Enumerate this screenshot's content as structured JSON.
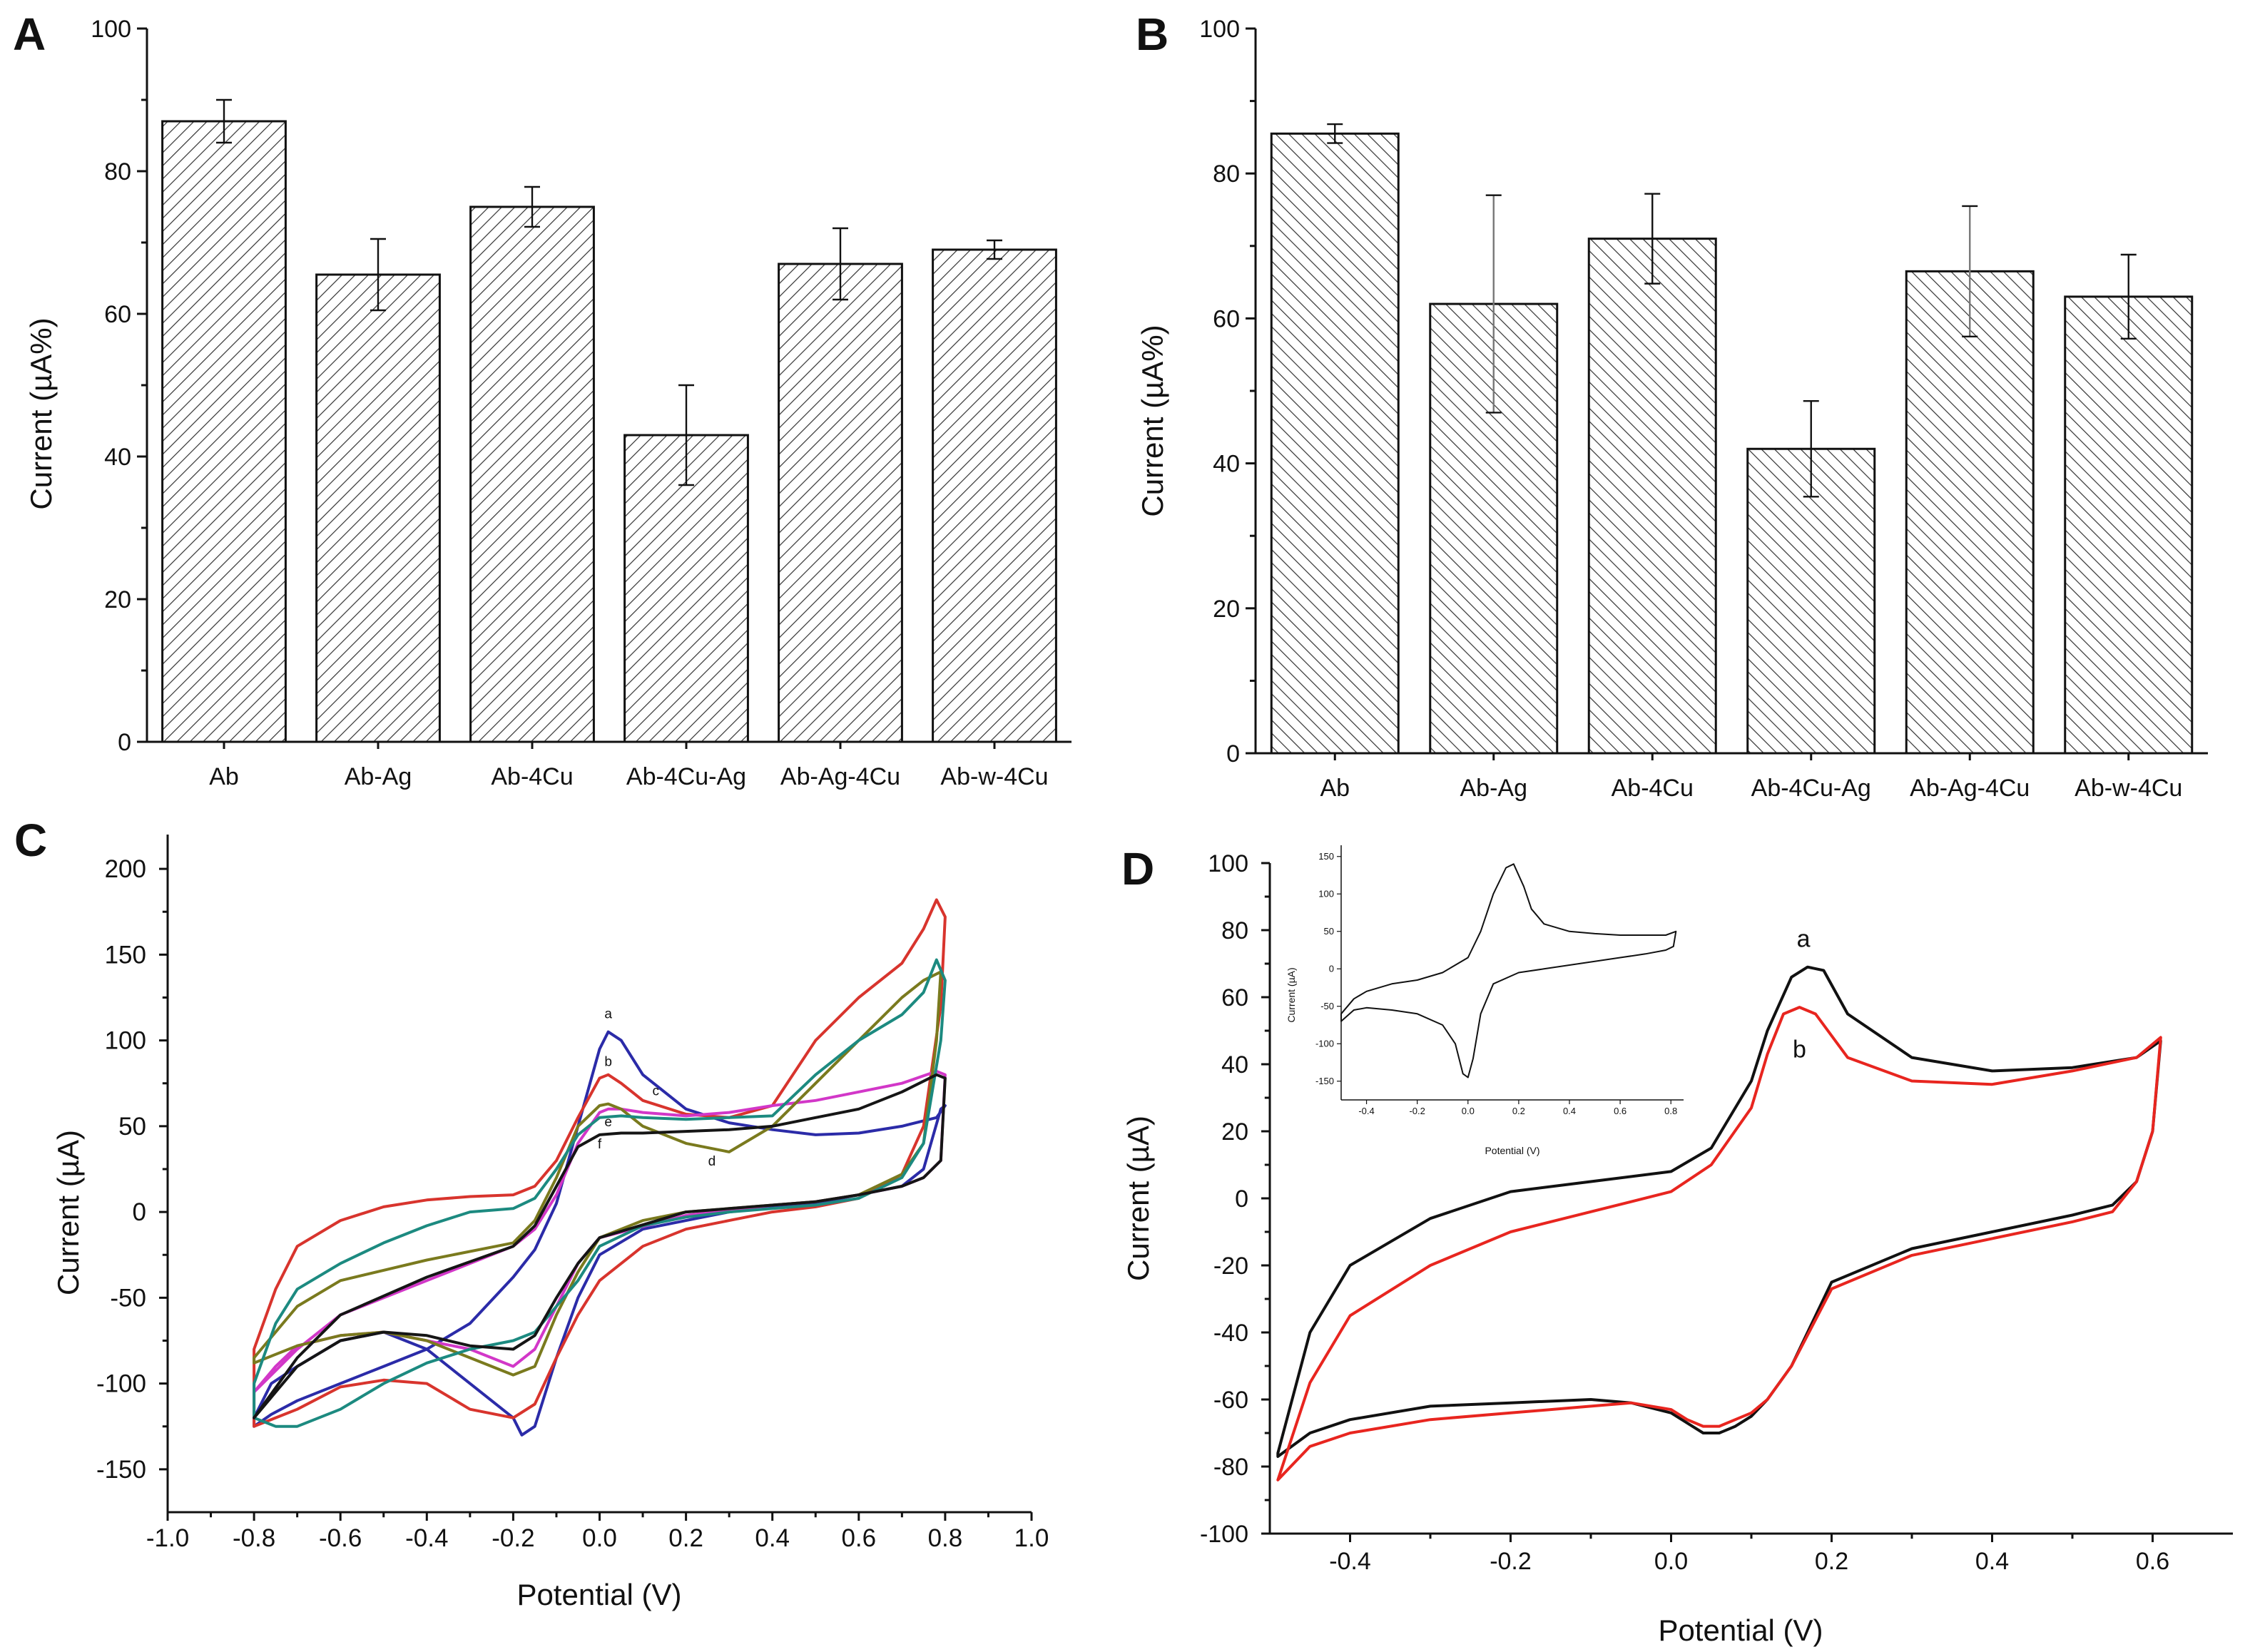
{
  "chart_data": [
    {
      "panel": "A",
      "type": "bar",
      "ylabel": "Current (µA%)",
      "ylim": [
        0,
        100
      ],
      "yticks": [
        "0",
        "20",
        "40",
        "60",
        "80",
        "100"
      ],
      "categories": [
        "Ab",
        "Ab-Ag",
        "Ab-4Cu",
        "Ab-4Cu-Ag",
        "Ab-Ag-4Cu",
        "Ab-w-4Cu"
      ],
      "values": [
        87,
        65.5,
        75,
        43,
        67,
        69
      ],
      "errors": [
        3,
        5,
        2.8,
        7,
        5,
        1.3
      ],
      "pattern": "diagonal hatch"
    },
    {
      "panel": "B",
      "type": "bar",
      "ylabel": "Current (µA%)",
      "ylim": [
        0,
        100
      ],
      "yticks": [
        "0",
        "20",
        "40",
        "60",
        "80",
        "100"
      ],
      "categories": [
        "Ab",
        "Ab-Ag",
        "Ab-4Cu",
        "Ab-4Cu-Ag",
        "Ab-Ag-4Cu",
        "Ab-w-4Cu"
      ],
      "values": [
        85.5,
        62,
        71,
        42,
        66.5,
        63
      ],
      "errors": [
        1.3,
        15,
        6.2,
        6.6,
        9,
        5.8
      ],
      "pattern": "back-diagonal hatch"
    },
    {
      "panel": "C",
      "type": "line",
      "xlabel": "Potential  (V)",
      "ylabel": "Current (µA)",
      "xlim": [
        -1.0,
        1.0
      ],
      "ylim": [
        -175,
        220
      ],
      "xticks": [
        "-1.0",
        "-0.8",
        "-0.6",
        "-0.4",
        "-0.2",
        "0.0",
        "0.2",
        "0.4",
        "0.6",
        "0.8",
        "1.0"
      ],
      "yticks": [
        "-150",
        "-100",
        "-50",
        "0",
        "50",
        "100",
        "150",
        "200"
      ],
      "series": [
        {
          "name": "a",
          "color": "#2b2ba8",
          "label_pos": [
            0.02,
            113
          ],
          "x": [
            -0.8,
            -0.76,
            -0.7,
            -0.6,
            -0.5,
            -0.4,
            -0.3,
            -0.2,
            -0.15,
            -0.1,
            -0.05,
            0,
            0.02,
            0.05,
            0.1,
            0.2,
            0.3,
            0.4,
            0.5,
            0.6,
            0.7,
            0.78,
            0.8,
            0.79,
            0.75,
            0.7,
            0.6,
            0.5,
            0.4,
            0.3,
            0.2,
            0.1,
            0,
            -0.05,
            -0.1,
            -0.15,
            -0.18,
            -0.2,
            -0.3,
            -0.4,
            -0.5,
            -0.6,
            -0.7,
            -0.76,
            -0.8
          ],
          "y": [
            -125,
            -118,
            -110,
            -100,
            -90,
            -80,
            -65,
            -38,
            -22,
            5,
            50,
            95,
            105,
            100,
            80,
            60,
            52,
            48,
            45,
            46,
            50,
            55,
            62,
            60,
            25,
            15,
            10,
            5,
            3,
            0,
            -5,
            -10,
            -25,
            -50,
            -85,
            -125,
            -130,
            -120,
            -100,
            -80,
            -70,
            -75,
            -90,
            -100,
            -120
          ]
        },
        {
          "name": "b",
          "color": "#d8342d",
          "label_pos": [
            0.02,
            85
          ],
          "x": [
            -0.8,
            -0.75,
            -0.7,
            -0.6,
            -0.5,
            -0.4,
            -0.3,
            -0.2,
            -0.15,
            -0.1,
            -0.05,
            0,
            0.02,
            0.05,
            0.1,
            0.2,
            0.3,
            0.4,
            0.5,
            0.6,
            0.7,
            0.75,
            0.78,
            0.8,
            0.79,
            0.75,
            0.7,
            0.6,
            0.5,
            0.4,
            0.3,
            0.2,
            0.1,
            0,
            -0.05,
            -0.1,
            -0.15,
            -0.2,
            -0.3,
            -0.4,
            -0.5,
            -0.6,
            -0.7,
            -0.8
          ],
          "y": [
            -80,
            -45,
            -20,
            -5,
            3,
            7,
            9,
            10,
            15,
            30,
            55,
            78,
            80,
            75,
            65,
            57,
            55,
            62,
            100,
            125,
            145,
            165,
            182,
            172,
            120,
            50,
            22,
            8,
            3,
            0,
            -5,
            -10,
            -20,
            -40,
            -60,
            -85,
            -112,
            -120,
            -115,
            -100,
            -98,
            -102,
            -115,
            -125
          ]
        },
        {
          "name": "c",
          "color": "#d237c8",
          "label_pos": [
            0.13,
            68
          ],
          "x": [
            -0.8,
            -0.7,
            -0.6,
            -0.4,
            -0.2,
            -0.15,
            -0.1,
            -0.05,
            0,
            0.02,
            0.05,
            0.1,
            0.2,
            0.3,
            0.4,
            0.5,
            0.6,
            0.7,
            0.78,
            0.8,
            0.79,
            0.75,
            0.7,
            0.6,
            0.5,
            0.4,
            0.2,
            0,
            -0.05,
            -0.1,
            -0.15,
            -0.2,
            -0.3,
            -0.4,
            -0.5,
            -0.6,
            -0.7,
            -0.75,
            -0.8
          ],
          "y": [
            -105,
            -80,
            -60,
            -40,
            -20,
            -10,
            10,
            40,
            58,
            60,
            60,
            58,
            56,
            58,
            62,
            65,
            70,
            75,
            82,
            80,
            30,
            20,
            15,
            10,
            6,
            4,
            -2,
            -15,
            -30,
            -55,
            -80,
            -90,
            -80,
            -75,
            -70,
            -72,
            -78,
            -90,
            -105
          ]
        },
        {
          "name": "d",
          "color": "#7a7a1e",
          "label_pos": [
            0.26,
            27
          ],
          "x": [
            -0.8,
            -0.7,
            -0.6,
            -0.4,
            -0.2,
            -0.15,
            -0.1,
            -0.05,
            0,
            0.02,
            0.05,
            0.1,
            0.2,
            0.3,
            0.4,
            0.5,
            0.6,
            0.7,
            0.75,
            0.79,
            0.78,
            0.75,
            0.7,
            0.6,
            0.5,
            0.4,
            0.3,
            0.2,
            0.1,
            0,
            -0.05,
            -0.1,
            -0.15,
            -0.2,
            -0.3,
            -0.4,
            -0.5,
            -0.6,
            -0.7,
            -0.8
          ],
          "y": [
            -85,
            -55,
            -40,
            -28,
            -18,
            -5,
            20,
            50,
            62,
            63,
            60,
            50,
            40,
            35,
            50,
            75,
            100,
            125,
            135,
            140,
            100,
            40,
            22,
            10,
            6,
            4,
            2,
            0,
            -5,
            -15,
            -35,
            -60,
            -90,
            -95,
            -85,
            -75,
            -70,
            -72,
            -78,
            -88
          ]
        },
        {
          "name": "e",
          "color": "#1c8a80",
          "label_pos": [
            0.02,
            50
          ],
          "x": [
            -0.8,
            -0.75,
            -0.7,
            -0.6,
            -0.5,
            -0.4,
            -0.3,
            -0.2,
            -0.15,
            -0.1,
            -0.05,
            0,
            0.05,
            0.1,
            0.2,
            0.3,
            0.4,
            0.5,
            0.6,
            0.7,
            0.75,
            0.78,
            0.8,
            0.79,
            0.75,
            0.7,
            0.6,
            0.5,
            0.4,
            0.3,
            0.2,
            0.1,
            0,
            -0.05,
            -0.1,
            -0.15,
            -0.2,
            -0.3,
            -0.4,
            -0.5,
            -0.6,
            -0.7,
            -0.75,
            -0.8
          ],
          "y": [
            -100,
            -65,
            -45,
            -30,
            -18,
            -8,
            0,
            2,
            8,
            25,
            45,
            55,
            56,
            55,
            54,
            55,
            56,
            80,
            100,
            115,
            128,
            147,
            135,
            100,
            40,
            20,
            8,
            4,
            2,
            0,
            -3,
            -8,
            -20,
            -40,
            -55,
            -70,
            -75,
            -80,
            -88,
            -100,
            -115,
            -125,
            -125,
            -120
          ]
        },
        {
          "name": "f",
          "color": "#151515",
          "label_pos": [
            0.0,
            37
          ],
          "x": [
            -0.8,
            -0.7,
            -0.6,
            -0.4,
            -0.2,
            -0.15,
            -0.1,
            -0.05,
            0,
            0.05,
            0.1,
            0.2,
            0.3,
            0.4,
            0.5,
            0.6,
            0.7,
            0.78,
            0.8,
            0.79,
            0.75,
            0.7,
            0.6,
            0.5,
            0.4,
            0.2,
            0,
            -0.05,
            -0.1,
            -0.15,
            -0.2,
            -0.3,
            -0.4,
            -0.5,
            -0.6,
            -0.7,
            -0.75,
            -0.8
          ],
          "y": [
            -120,
            -85,
            -60,
            -38,
            -20,
            -8,
            15,
            38,
            45,
            46,
            46,
            47,
            48,
            50,
            55,
            60,
            70,
            80,
            78,
            30,
            20,
            15,
            10,
            6,
            4,
            0,
            -15,
            -30,
            -50,
            -72,
            -80,
            -78,
            -72,
            -70,
            -75,
            -90,
            -105,
            -120
          ]
        }
      ]
    },
    {
      "panel": "D",
      "type": "line",
      "xlabel": "Potential (V)",
      "ylabel": "Current (µA)",
      "xlim": [
        -0.5,
        0.7
      ],
      "ylim": [
        -100,
        100
      ],
      "xticks": [
        "-0.4",
        "-0.2",
        "0.0",
        "0.2",
        "0.4",
        "0.6"
      ],
      "yticks": [
        "-100",
        "-80",
        "-60",
        "-40",
        "-20",
        "0",
        "20",
        "40",
        "60",
        "80",
        "100"
      ],
      "series": [
        {
          "name": "a",
          "color": "#111111",
          "label_pos": [
            0.165,
            75
          ],
          "x": [
            -0.49,
            -0.45,
            -0.4,
            -0.3,
            -0.2,
            -0.1,
            0,
            0.05,
            0.1,
            0.12,
            0.15,
            0.17,
            0.19,
            0.22,
            0.3,
            0.4,
            0.5,
            0.58,
            0.61,
            0.6,
            0.58,
            0.55,
            0.5,
            0.4,
            0.3,
            0.2,
            0.15,
            0.12,
            0.1,
            0.08,
            0.06,
            0.04,
            0.02,
            0,
            -0.05,
            -0.1,
            -0.2,
            -0.3,
            -0.4,
            -0.45,
            -0.49
          ],
          "y": [
            -76,
            -40,
            -20,
            -6,
            2,
            5,
            8,
            15,
            35,
            50,
            66,
            69,
            68,
            55,
            42,
            38,
            39,
            42,
            47,
            20,
            5,
            -2,
            -5,
            -10,
            -15,
            -25,
            -50,
            -60,
            -65,
            -68,
            -70,
            -70,
            -67,
            -64,
            -61,
            -60,
            -61,
            -62,
            -66,
            -70,
            -77
          ]
        },
        {
          "name": "b",
          "color": "#e8251f",
          "label_pos": [
            0.16,
            42
          ],
          "x": [
            -0.49,
            -0.45,
            -0.4,
            -0.3,
            -0.2,
            -0.1,
            0,
            0.05,
            0.1,
            0.12,
            0.14,
            0.16,
            0.18,
            0.22,
            0.3,
            0.4,
            0.5,
            0.58,
            0.61,
            0.6,
            0.58,
            0.55,
            0.5,
            0.4,
            0.3,
            0.2,
            0.15,
            0.12,
            0.1,
            0.08,
            0.06,
            0.04,
            0.02,
            0,
            -0.05,
            -0.1,
            -0.2,
            -0.3,
            -0.4,
            -0.45,
            -0.49
          ],
          "y": [
            -84,
            -55,
            -35,
            -20,
            -10,
            -4,
            2,
            10,
            27,
            43,
            55,
            57,
            55,
            42,
            35,
            34,
            38,
            42,
            48,
            20,
            5,
            -4,
            -7,
            -12,
            -17,
            -27,
            -50,
            -60,
            -64,
            -66,
            -68,
            -68,
            -66,
            -63,
            -61,
            -62,
            -64,
            -66,
            -70,
            -74,
            -84
          ]
        }
      ],
      "inset": {
        "xlabel": "Potential (V)",
        "ylabel": "Current (µA)",
        "xlim": [
          -0.5,
          0.85
        ],
        "ylim": [
          -175,
          165
        ],
        "xticks": [
          "-0.4",
          "-0.2",
          "0.0",
          "0.2",
          "0.4",
          "0.6",
          "0.8"
        ],
        "yticks": [
          "-150",
          "-100",
          "-50",
          "0",
          "50",
          "100",
          "150"
        ],
        "x": [
          -0.5,
          -0.45,
          -0.4,
          -0.3,
          -0.2,
          -0.1,
          0,
          0.05,
          0.1,
          0.15,
          0.18,
          0.22,
          0.25,
          0.3,
          0.4,
          0.5,
          0.6,
          0.7,
          0.78,
          0.82,
          0.81,
          0.78,
          0.7,
          0.6,
          0.5,
          0.4,
          0.3,
          0.2,
          0.1,
          0.05,
          0.02,
          0,
          -0.02,
          -0.05,
          -0.1,
          -0.2,
          -0.3,
          -0.4,
          -0.45,
          -0.5
        ],
        "y": [
          -60,
          -40,
          -30,
          -20,
          -15,
          -5,
          15,
          50,
          100,
          135,
          140,
          110,
          80,
          60,
          50,
          47,
          45,
          45,
          45,
          50,
          30,
          25,
          20,
          15,
          10,
          5,
          0,
          -5,
          -20,
          -60,
          -120,
          -145,
          -140,
          -100,
          -75,
          -60,
          -55,
          -52,
          -55,
          -70
        ]
      }
    }
  ]
}
